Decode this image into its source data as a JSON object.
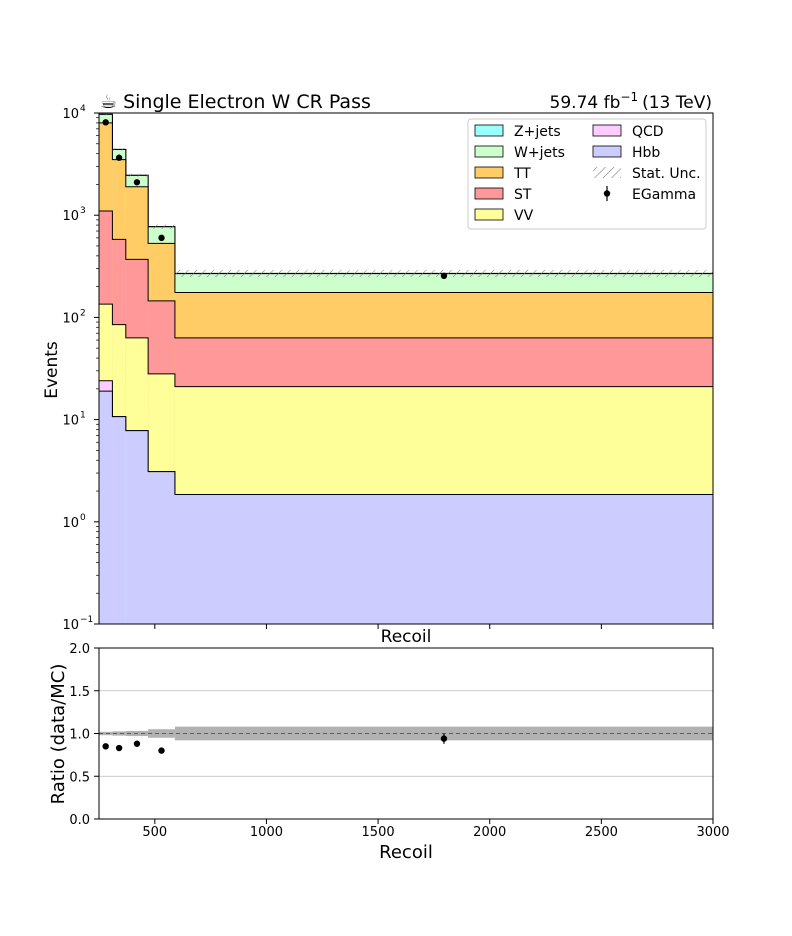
{
  "chart_data": [
    {
      "type": "area",
      "title": "☕ Single Electron W CR Pass",
      "lumi_label": "59.74 fb$^{-1}$ (13 TeV)",
      "lumi_value": "59.74 fb",
      "lumi_exp": "−1",
      "lumi_energy": "(13 TeV)",
      "xlabel": "Recoil",
      "ylabel": "Events",
      "log_y": true,
      "ylim": [
        0.1,
        10000
      ],
      "xlim": [
        250,
        3000
      ],
      "y_ticks": [
        {
          "value": 0.1,
          "base": "10",
          "exp": "−1"
        },
        {
          "value": 1,
          "base": "10",
          "exp": "0"
        },
        {
          "value": 10,
          "base": "10",
          "exp": "1"
        },
        {
          "value": 100,
          "base": "10",
          "exp": "2"
        },
        {
          "value": 1000,
          "base": "10",
          "exp": "3"
        },
        {
          "value": 10000,
          "base": "10",
          "exp": "4"
        }
      ],
      "bin_edges": [
        250,
        310,
        370,
        470,
        590,
        3000
      ],
      "stack_cumulative": [
        {
          "name": "Hbb",
          "color": "#ccccff",
          "values": [
            19,
            10.7,
            7.8,
            3.1,
            1.85
          ]
        },
        {
          "name": "QCD",
          "color": "#ffccff",
          "values": [
            24,
            10.7,
            7.8,
            3.1,
            1.85
          ]
        },
        {
          "name": "VV",
          "color": "#ffff99",
          "values": [
            135,
            85,
            63,
            28,
            21
          ]
        },
        {
          "name": "ST",
          "color": "#ff9999",
          "values": [
            1100,
            580,
            370,
            145,
            63
          ]
        },
        {
          "name": "TT",
          "color": "#ffcc66",
          "values": [
            8000,
            3500,
            1900,
            530,
            175
          ]
        },
        {
          "name": "W+jets",
          "color": "#ccffcc",
          "values": [
            9700,
            4400,
            2450,
            770,
            268
          ]
        },
        {
          "name": "Z+jets",
          "color": "#99ffff",
          "values": [
            9720,
            4410,
            2460,
            772,
            270
          ]
        }
      ],
      "stat_unc": {
        "name": "Stat. Unc.",
        "rel": [
          0.02,
          0.025,
          0.03,
          0.05,
          0.08
        ]
      },
      "data": {
        "name": "EGamma",
        "x": [
          280,
          340,
          420,
          530,
          1795
        ],
        "y": [
          8100,
          3650,
          2100,
          600,
          255
        ]
      },
      "legend": {
        "placement": "upper-right",
        "columns": [
          [
            "Z+jets",
            "W+jets",
            "TT",
            "ST",
            "VV"
          ],
          [
            "QCD",
            "Hbb",
            "Stat. Unc.",
            "EGamma"
          ]
        ]
      }
    },
    {
      "type": "scatter",
      "xlabel": "Recoil",
      "ylabel": "Ratio (data/MC)",
      "xlim": [
        250,
        3000
      ],
      "ylim": [
        0.0,
        2.0
      ],
      "x_ticks": [
        "500",
        "1000",
        "1500",
        "2000",
        "2500",
        "3000"
      ],
      "y_ticks": [
        "0.0",
        "0.5",
        "1.0",
        "1.5",
        "2.0"
      ],
      "grid": "horizontal",
      "points": {
        "x": [
          280,
          340,
          420,
          530,
          1795
        ],
        "y": [
          0.85,
          0.83,
          0.88,
          0.8,
          0.94
        ],
        "err": [
          0.01,
          0.015,
          0.02,
          0.03,
          0.06
        ]
      },
      "unc_band": [
        0.02,
        0.025,
        0.03,
        0.05,
        0.08
      ],
      "reference_line": 1.0
    }
  ]
}
